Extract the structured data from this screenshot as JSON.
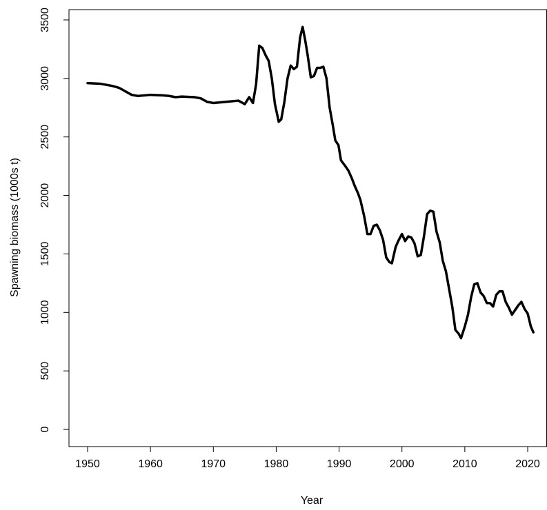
{
  "chart_data": {
    "type": "line",
    "x_label": "Year",
    "y_label": "Spawning biomass (1000s t)",
    "xlim": [
      1947.04,
      2023.07
    ],
    "ylim": [
      -147,
      3588
    ],
    "xticks": [
      1950,
      1960,
      1970,
      1980,
      1990,
      2000,
      2010,
      2020
    ],
    "yticks": [
      0,
      500,
      1000,
      1500,
      2000,
      2500,
      3000,
      3500
    ],
    "series": [
      {
        "color": "#000000",
        "x": [
          1950,
          1952,
          1954,
          1955,
          1956,
          1957,
          1958,
          1960,
          1962,
          1963,
          1964,
          1965,
          1967,
          1968,
          1969,
          1970,
          1972,
          1974,
          1975,
          1975.7,
          1976.3,
          1976.8,
          1977.3,
          1977.8,
          1978.3,
          1978.8,
          1979.3,
          1979.8,
          1980.4,
          1980.8,
          1981.3,
          1981.8,
          1982.3,
          1982.8,
          1983.3,
          1983.8,
          1984.2,
          1984.6,
          1985,
          1985.5,
          1986,
          1986.5,
          1987,
          1987.5,
          1988,
          1988.5,
          1989,
          1989.4,
          1989.9,
          1990.3,
          1991,
          1991.5,
          1992,
          1992.5,
          1993,
          1993.4,
          1994,
          1994.5,
          1995,
          1995.5,
          1996,
          1996.5,
          1997,
          1997.5,
          1998,
          1998.4,
          1999,
          1999.5,
          2000,
          2000.5,
          2001,
          2001.5,
          2002,
          2002.5,
          2003,
          2003.5,
          2004,
          2004.5,
          2005,
          2005.5,
          2006,
          2006.5,
          2007,
          2007.5,
          2008,
          2008.5,
          2009,
          2009.4,
          2010,
          2010.5,
          2011,
          2011.5,
          2012,
          2012.5,
          2013,
          2013.5,
          2014,
          2014.5,
          2015,
          2015.5,
          2016,
          2016.5,
          2017,
          2017.5,
          2018,
          2018.5,
          2019,
          2019.5,
          2020,
          2020.5,
          2020.9
        ],
        "values": [
          2960,
          2955,
          2935,
          2920,
          2890,
          2860,
          2850,
          2860,
          2855,
          2850,
          2840,
          2845,
          2840,
          2830,
          2800,
          2790,
          2800,
          2810,
          2780,
          2840,
          2790,
          2950,
          3280,
          3260,
          3200,
          3150,
          3000,
          2780,
          2630,
          2650,
          2800,
          3000,
          3110,
          3080,
          3100,
          3350,
          3440,
          3330,
          3200,
          3010,
          3020,
          3090,
          3090,
          3100,
          3000,
          2750,
          2600,
          2470,
          2430,
          2300,
          2250,
          2210,
          2150,
          2080,
          2020,
          1960,
          1820,
          1670,
          1670,
          1740,
          1750,
          1700,
          1620,
          1470,
          1430,
          1420,
          1560,
          1620,
          1670,
          1610,
          1650,
          1640,
          1590,
          1480,
          1490,
          1650,
          1840,
          1870,
          1860,
          1690,
          1600,
          1440,
          1350,
          1200,
          1050,
          850,
          820,
          780,
          880,
          980,
          1130,
          1240,
          1250,
          1170,
          1140,
          1080,
          1080,
          1050,
          1150,
          1180,
          1180,
          1090,
          1040,
          980,
          1020,
          1060,
          1090,
          1030,
          990,
          880,
          830
        ]
      }
    ]
  }
}
